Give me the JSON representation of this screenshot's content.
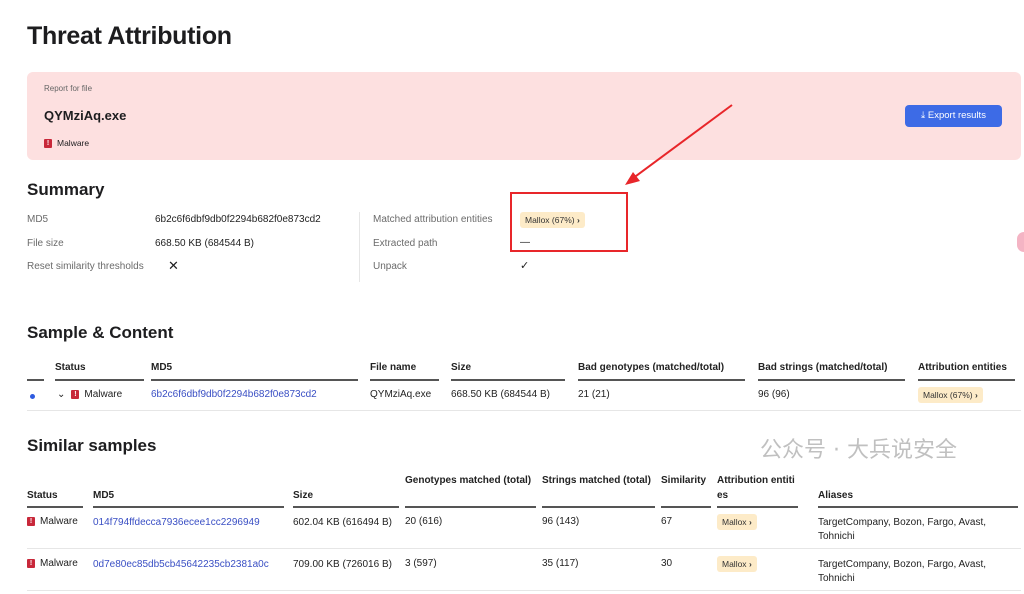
{
  "title": "Threat Attribution",
  "banner": {
    "caption": "Report for file",
    "file_name": "QYMziAq.exe",
    "status": "Malware",
    "export_label": "Export results",
    "bg_color": "#fde0e0",
    "button_color": "#3d6be6"
  },
  "summary": {
    "heading": "Summary",
    "left": [
      {
        "label": "MD5",
        "value": "6b2c6f6dbf9db0f2294b682f0e873cd2"
      },
      {
        "label": "File size",
        "value": "668.50 KB (684544 B)"
      },
      {
        "label": "Reset similarity thresholds",
        "value": "✕"
      }
    ],
    "right": [
      {
        "label": "Matched attribution entities",
        "value": "Mallox (67%)"
      },
      {
        "label": "Extracted path",
        "value": "—"
      },
      {
        "label": "Unpack",
        "value": "✓"
      }
    ]
  },
  "sample": {
    "heading": "Sample & Content",
    "columns": [
      "Status",
      "MD5",
      "File name",
      "Size",
      "Bad genotypes (matched/total)",
      "Bad strings (matched/total)",
      "Attribution entities"
    ],
    "row": {
      "status": "Malware",
      "md5": "6b2c6f6dbf9db0f2294b682f0e873cd2",
      "file_name": "QYMziAq.exe",
      "size": "668.50 KB (684544 B)",
      "bad_genotypes": "21 (21)",
      "bad_strings": "96 (96)",
      "entity": "Mallox (67%)"
    }
  },
  "similar": {
    "heading": "Similar samples",
    "columns": [
      "Status",
      "MD5",
      "Size",
      "Genotypes matched (total)",
      "Strings matched (total)",
      "Similarity",
      "Attribution entities",
      "Aliases"
    ],
    "rows": [
      {
        "status": "Malware",
        "md5": "014f794ffdecca7936ecee1cc2296949",
        "size": "602.04 KB (616494 B)",
        "genotypes": "20 (616)",
        "strings": "96 (143)",
        "similarity": "67",
        "entity": "Mallox",
        "aliases": "TargetCompany, Bozon, Fargo, Avast, Tohnichi"
      },
      {
        "status": "Malware",
        "md5": "0d7e80ec85db5cb45642235cb2381a0c",
        "size": "709.00 KB (726016 B)",
        "genotypes": "3 (597)",
        "strings": "35 (117)",
        "similarity": "30",
        "entity": "Mallox",
        "aliases": "TargetCompany, Bozon, Fargo, Avast, Tohnichi"
      }
    ]
  },
  "watermark": "公众号 · 大兵说安全",
  "annotation_color": "#e8262a"
}
